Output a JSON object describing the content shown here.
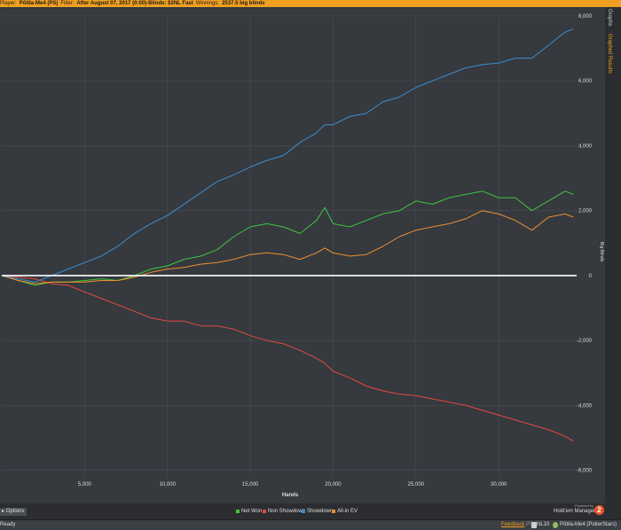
{
  "topbar": {
    "player_label": "Player:",
    "player": "Pōtila-Me4 (PS)",
    "filter_label": "Filter:",
    "filter": "After August 07, 2017 (0:00)-Blinds: $2NL Fast",
    "winnings_label": "Winnings:",
    "winnings": "2537.5 big blinds"
  },
  "side_tabs": {
    "graphs": "Graphs",
    "graphed_results": "Graphed Results"
  },
  "options_label": "Options",
  "branding": {
    "powered_by": "Powered by",
    "product": "Hold'em Manager",
    "logo_digit": "2"
  },
  "status": {
    "ready": "Ready",
    "feedback": "Feedback",
    "ps_label": "PS",
    "limit": "NL10",
    "player": "Pōtila-Me4 (PokerStars)"
  },
  "colors": {
    "net_won": "#3ec63e",
    "non_showdown": "#e04a40",
    "showdown": "#3a8fd0",
    "allin_ev": "#f0902e",
    "zero_line": "#ffffff",
    "accent": "#f0a020"
  },
  "chart_data": {
    "type": "line",
    "xlabel": "Hands",
    "ylabel": "Big Blinds",
    "xlim": [
      0,
      34700
    ],
    "ylim": [
      -6200,
      8000
    ],
    "x_ticks": [
      "5,000",
      "10,000",
      "15,000",
      "20,000",
      "25,000",
      "30,000"
    ],
    "y_ticks": [
      "8,000",
      "6,000",
      "4,000",
      "2,000",
      "0",
      "-2,000",
      "-4,000",
      "-6,000"
    ],
    "grid": true,
    "legend_position": "bottom",
    "x": [
      0,
      1000,
      2000,
      3000,
      4000,
      5000,
      6000,
      7000,
      8000,
      9000,
      10000,
      11000,
      12000,
      13000,
      14000,
      15000,
      16000,
      17000,
      18000,
      19000,
      19500,
      20000,
      21000,
      22000,
      23000,
      24000,
      25000,
      26000,
      27000,
      28000,
      29000,
      30000,
      31000,
      32000,
      33000,
      34000,
      34500
    ],
    "series": [
      {
        "name": "Net Won",
        "values": [
          0,
          -150,
          -300,
          -200,
          -200,
          -150,
          -100,
          -150,
          0,
          200,
          300,
          500,
          600,
          800,
          1200,
          1500,
          1600,
          1500,
          1300,
          1700,
          2100,
          1600,
          1500,
          1700,
          1900,
          2000,
          2300,
          2200,
          2400,
          2500,
          2600,
          2400,
          2400,
          2000,
          2300,
          2600,
          2500
        ]
      },
      {
        "name": "Non Showdown",
        "values": [
          0,
          -50,
          -100,
          -250,
          -300,
          -500,
          -700,
          -900,
          -1100,
          -1300,
          -1400,
          -1400,
          -1550,
          -1550,
          -1650,
          -1850,
          -2000,
          -2100,
          -2300,
          -2550,
          -2700,
          -2950,
          -3150,
          -3400,
          -3550,
          -3650,
          -3700,
          -3800,
          -3900,
          -4000,
          -4150,
          -4300,
          -4450,
          -4600,
          -4750,
          -4950,
          -5100
        ]
      },
      {
        "name": "Showdown",
        "values": [
          0,
          -100,
          -200,
          0,
          200,
          400,
          600,
          900,
          1300,
          1600,
          1850,
          2200,
          2550,
          2900,
          3100,
          3350,
          3550,
          3700,
          4100,
          4400,
          4650,
          4650,
          4900,
          5000,
          5350,
          5500,
          5800,
          6000,
          6200,
          6400,
          6500,
          6550,
          6700,
          6700,
          7100,
          7500,
          7600
        ]
      },
      {
        "name": "All-in EV",
        "values": [
          0,
          -150,
          -250,
          -200,
          -200,
          -200,
          -150,
          -150,
          -50,
          100,
          200,
          250,
          350,
          400,
          500,
          650,
          700,
          650,
          500,
          700,
          850,
          700,
          600,
          650,
          900,
          1200,
          1400,
          1500,
          1600,
          1750,
          2000,
          1900,
          1700,
          1400,
          1800,
          1900,
          1800
        ]
      }
    ]
  }
}
